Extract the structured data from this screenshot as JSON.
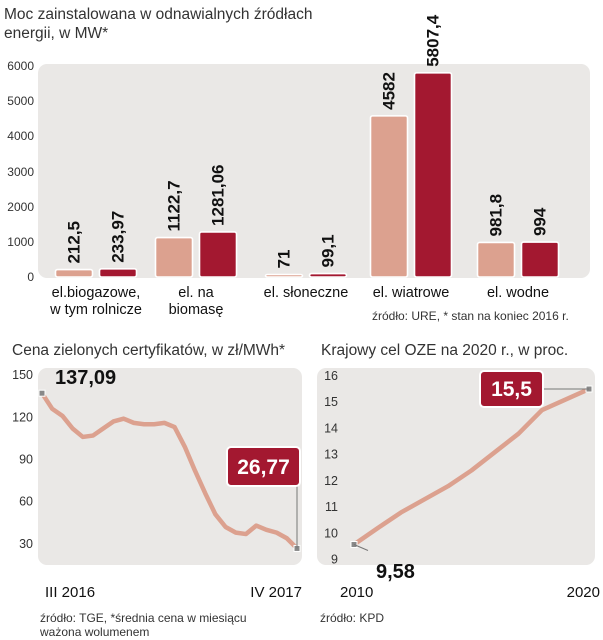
{
  "chart_data": [
    {
      "type": "bar",
      "title": "Moc zainstalowana w odnawialnych źródłach energii, w MW*",
      "categories": [
        "el.biogazowe, w tym rolnicze",
        "el. na biomasę",
        "el. słoneczne",
        "el. wiatrowe",
        "el. wodne"
      ],
      "category_lines": [
        [
          "el.biogazowe,",
          "w tym rolnicze"
        ],
        [
          "el. na",
          "biomasę"
        ],
        [
          "el. słoneczne"
        ],
        [
          "el. wiatrowe"
        ],
        [
          "el. wodne"
        ]
      ],
      "series": [
        {
          "values": [
            212.5,
            1122.7,
            71,
            4582,
            981.8
          ],
          "labels": [
            "212,5",
            "1122,7",
            "71",
            "4582",
            "981,8"
          ],
          "color": "#dca18f"
        },
        {
          "values": [
            233.97,
            1281.06,
            99.1,
            5807.4,
            994
          ],
          "labels": [
            "233,97",
            "1281,06",
            "99,1",
            "5807,4",
            "994"
          ],
          "color": "#a31830"
        }
      ],
      "yticks": [
        "0",
        "1000",
        "2000",
        "3000",
        "4000",
        "5000",
        "6000"
      ],
      "ylim": [
        0,
        6000
      ],
      "source": "źródło: URE, * stan na koniec  2016 r."
    },
    {
      "type": "line",
      "title": "Cena zielonych certyfikatów, w zł/MWh*",
      "x_labels": [
        "III 2016",
        "IV 2017"
      ],
      "values": [
        137.09,
        126,
        121,
        112,
        106,
        107,
        112,
        117,
        119,
        116,
        115,
        115,
        116,
        113,
        99,
        82,
        66,
        51,
        42,
        38,
        37,
        43,
        40,
        38,
        34,
        26.77
      ],
      "yticks": [
        "30",
        "60",
        "90",
        "120",
        "150"
      ],
      "ylim": [
        15,
        155
      ],
      "start_label": "137,09",
      "end_label": "26,77",
      "line_color": "#dca18f",
      "highlight_color": "#a31830",
      "source_lines": [
        "źródło: TGE, *średnia cena w miesiącu",
        "ważona wolumenem"
      ]
    },
    {
      "type": "line",
      "title": "Krajowy cel OZE na 2020 r.,  w proc.",
      "x": [
        2010,
        2011,
        2012,
        2013,
        2014,
        2015,
        2016,
        2017,
        2018,
        2019,
        2020
      ],
      "x_labels": [
        "2010",
        "2020"
      ],
      "values": [
        9.58,
        10.2,
        10.8,
        11.3,
        11.8,
        12.4,
        13.1,
        13.8,
        14.7,
        15.1,
        15.5
      ],
      "yticks": [
        "9",
        "10",
        "11",
        "12",
        "13",
        "14",
        "15",
        "16"
      ],
      "ylim": [
        8.8,
        16.3
      ],
      "start_label": "9,58",
      "end_label": "15,5",
      "line_color": "#dca18f",
      "highlight_color": "#a31830",
      "source": "źródło: KPD"
    }
  ]
}
